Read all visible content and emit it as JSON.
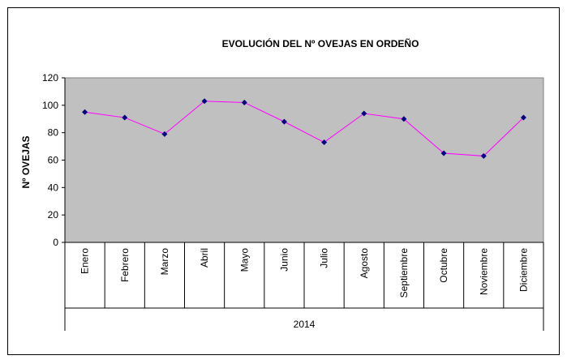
{
  "chart_data": {
    "type": "line",
    "title": "EVOLUCIÓN DEL Nº OVEJAS  EN ORDEÑO",
    "y_label": "Nº OVEJAS",
    "x_group": "2014",
    "categories": [
      "Enero",
      "Febrero",
      "Marzo",
      "Abril",
      "Mayo",
      "Junio",
      "Julio",
      "Agosto",
      "Septiembre",
      "Octubre",
      "Noviembre",
      "Diciembre"
    ],
    "values": [
      95,
      91,
      79,
      103,
      102,
      88,
      73,
      94,
      90,
      65,
      63,
      91
    ],
    "color": "#ff00ff",
    "marker_color": "#000080",
    "plot_background": "#c0c0c0",
    "ylim": [
      0,
      120
    ],
    "yticks": [
      0,
      20,
      40,
      60,
      80,
      100,
      120
    ],
    "grid": false
  }
}
